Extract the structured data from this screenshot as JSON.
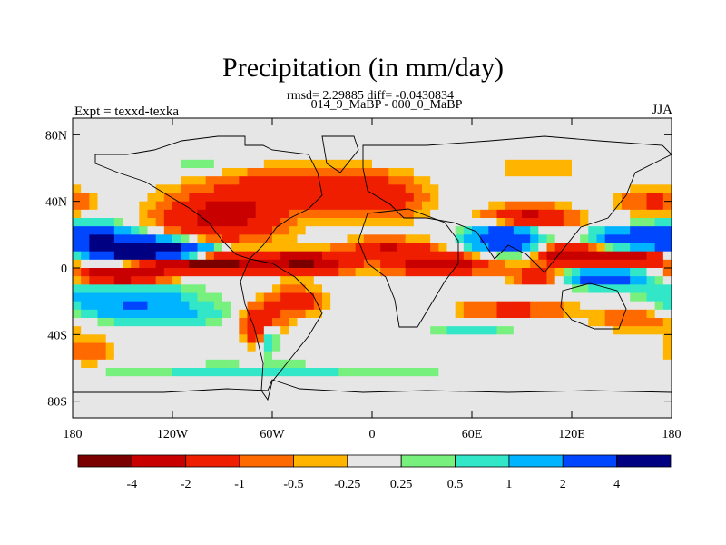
{
  "chart_data": {
    "type": "heatmap",
    "title": "Precipitation (in mm/day)",
    "stats": "rmsd= 2.29885 diff= -0.0430834",
    "subtitle": "014_9_MaBP - 000_0_MaBP",
    "left_label": "Expt = texxd-texka",
    "right_label": "JJA",
    "x_ticks": [
      {
        "value": -180,
        "label": "180"
      },
      {
        "value": -120,
        "label": "120W"
      },
      {
        "value": -60,
        "label": "60W"
      },
      {
        "value": 0,
        "label": "0"
      },
      {
        "value": 60,
        "label": "60E"
      },
      {
        "value": 120,
        "label": "120E"
      },
      {
        "value": 180,
        "label": "180"
      }
    ],
    "y_ticks": [
      {
        "value": 80,
        "label": "80N"
      },
      {
        "value": 40,
        "label": "40N"
      },
      {
        "value": 0,
        "label": "0"
      },
      {
        "value": -40,
        "label": "40S"
      },
      {
        "value": -80,
        "label": "80S"
      }
    ],
    "xlim": [
      -180,
      180
    ],
    "ylim": [
      -90,
      90
    ],
    "colorbar": {
      "colors": [
        "#7a0000",
        "#c80000",
        "#f01e00",
        "#ff6a00",
        "#ffb400",
        "#e6e6e6",
        "#78f07d",
        "#32e6c8",
        "#00b4ff",
        "#0046ff",
        "#000082"
      ],
      "labels": [
        "-4",
        "-2",
        "-1",
        "-0.5",
        "-0.25",
        "0.25",
        "0.5",
        "1",
        "2",
        "4"
      ]
    },
    "features": [
      {
        "lon": -150,
        "lat": 12,
        "wlon": 30,
        "wlat": 7,
        "v": 6
      },
      {
        "lon": -120,
        "lat": 10,
        "wlon": 25,
        "wlat": 5,
        "v": 4
      },
      {
        "lon": -170,
        "lat": 22,
        "wlon": 20,
        "wlat": 6,
        "v": 2
      },
      {
        "lon": -100,
        "lat": 3,
        "wlon": 35,
        "wlat": 5,
        "v": -5
      },
      {
        "lon": -40,
        "lat": 3,
        "wlon": 25,
        "wlat": 6,
        "v": -4
      },
      {
        "lon": -150,
        "lat": -4,
        "wlon": 25,
        "wlat": 5,
        "v": -4
      },
      {
        "lon": -90,
        "lat": 30,
        "wlon": 35,
        "wlat": 14,
        "v": -2.5
      },
      {
        "lon": -40,
        "lat": 48,
        "wlon": 50,
        "wlat": 12,
        "v": -1.8
      },
      {
        "lon": 5,
        "lat": 40,
        "wlon": 25,
        "wlat": 12,
        "v": -1.2
      },
      {
        "lon": -150,
        "lat": -20,
        "wlon": 40,
        "wlat": 10,
        "v": 2
      },
      {
        "lon": -120,
        "lat": -28,
        "wlon": 30,
        "wlat": 6,
        "v": 1
      },
      {
        "lon": -62,
        "lat": -40,
        "wlon": 6,
        "wlat": 10,
        "v": 3
      },
      {
        "lon": -65,
        "lat": -35,
        "wlon": 10,
        "wlat": 12,
        "v": -3
      },
      {
        "lon": -45,
        "lat": -20,
        "wlon": 15,
        "wlat": 8,
        "v": -1.5
      },
      {
        "lon": -70,
        "lat": -62,
        "wlon": 120,
        "wlat": 5,
        "v": 0.6
      },
      {
        "lon": -170,
        "lat": -50,
        "wlon": 15,
        "wlat": 10,
        "v": -0.8
      },
      {
        "lon": 40,
        "lat": 2,
        "wlon": 30,
        "wlat": 6,
        "v": -3
      },
      {
        "lon": 10,
        "lat": 12,
        "wlon": 25,
        "wlat": 5,
        "v": -2
      },
      {
        "lon": 80,
        "lat": 18,
        "wlon": 20,
        "wlat": 8,
        "v": 4
      },
      {
        "lon": 95,
        "lat": 30,
        "wlon": 25,
        "wlat": 7,
        "v": -2.5
      },
      {
        "lon": 120,
        "lat": 8,
        "wlon": 18,
        "wlat": 6,
        "v": -3.5
      },
      {
        "lon": 160,
        "lat": 6,
        "wlon": 22,
        "wlat": 5,
        "v": -3
      },
      {
        "lon": 160,
        "lat": 18,
        "wlon": 25,
        "wlat": 6,
        "v": 3.5
      },
      {
        "lon": 140,
        "lat": -6,
        "wlon": 25,
        "wlat": 5,
        "v": 3
      },
      {
        "lon": 100,
        "lat": -5,
        "wlon": 15,
        "wlat": 5,
        "v": -2
      },
      {
        "lon": 85,
        "lat": -25,
        "wlon": 30,
        "wlat": 5,
        "v": -1.5
      },
      {
        "lon": 60,
        "lat": -38,
        "wlon": 25,
        "wlat": 4,
        "v": 0.7
      },
      {
        "lon": 160,
        "lat": -30,
        "wlon": 25,
        "wlat": 8,
        "v": -1
      },
      {
        "lon": 170,
        "lat": 40,
        "wlon": 20,
        "wlat": 8,
        "v": -1.2
      },
      {
        "lon": 100,
        "lat": 60,
        "wlon": 40,
        "wlat": 6,
        "v": -0.4
      },
      {
        "lon": -100,
        "lat": 62,
        "wlon": 30,
        "wlat": 5,
        "v": 0.4
      }
    ]
  }
}
